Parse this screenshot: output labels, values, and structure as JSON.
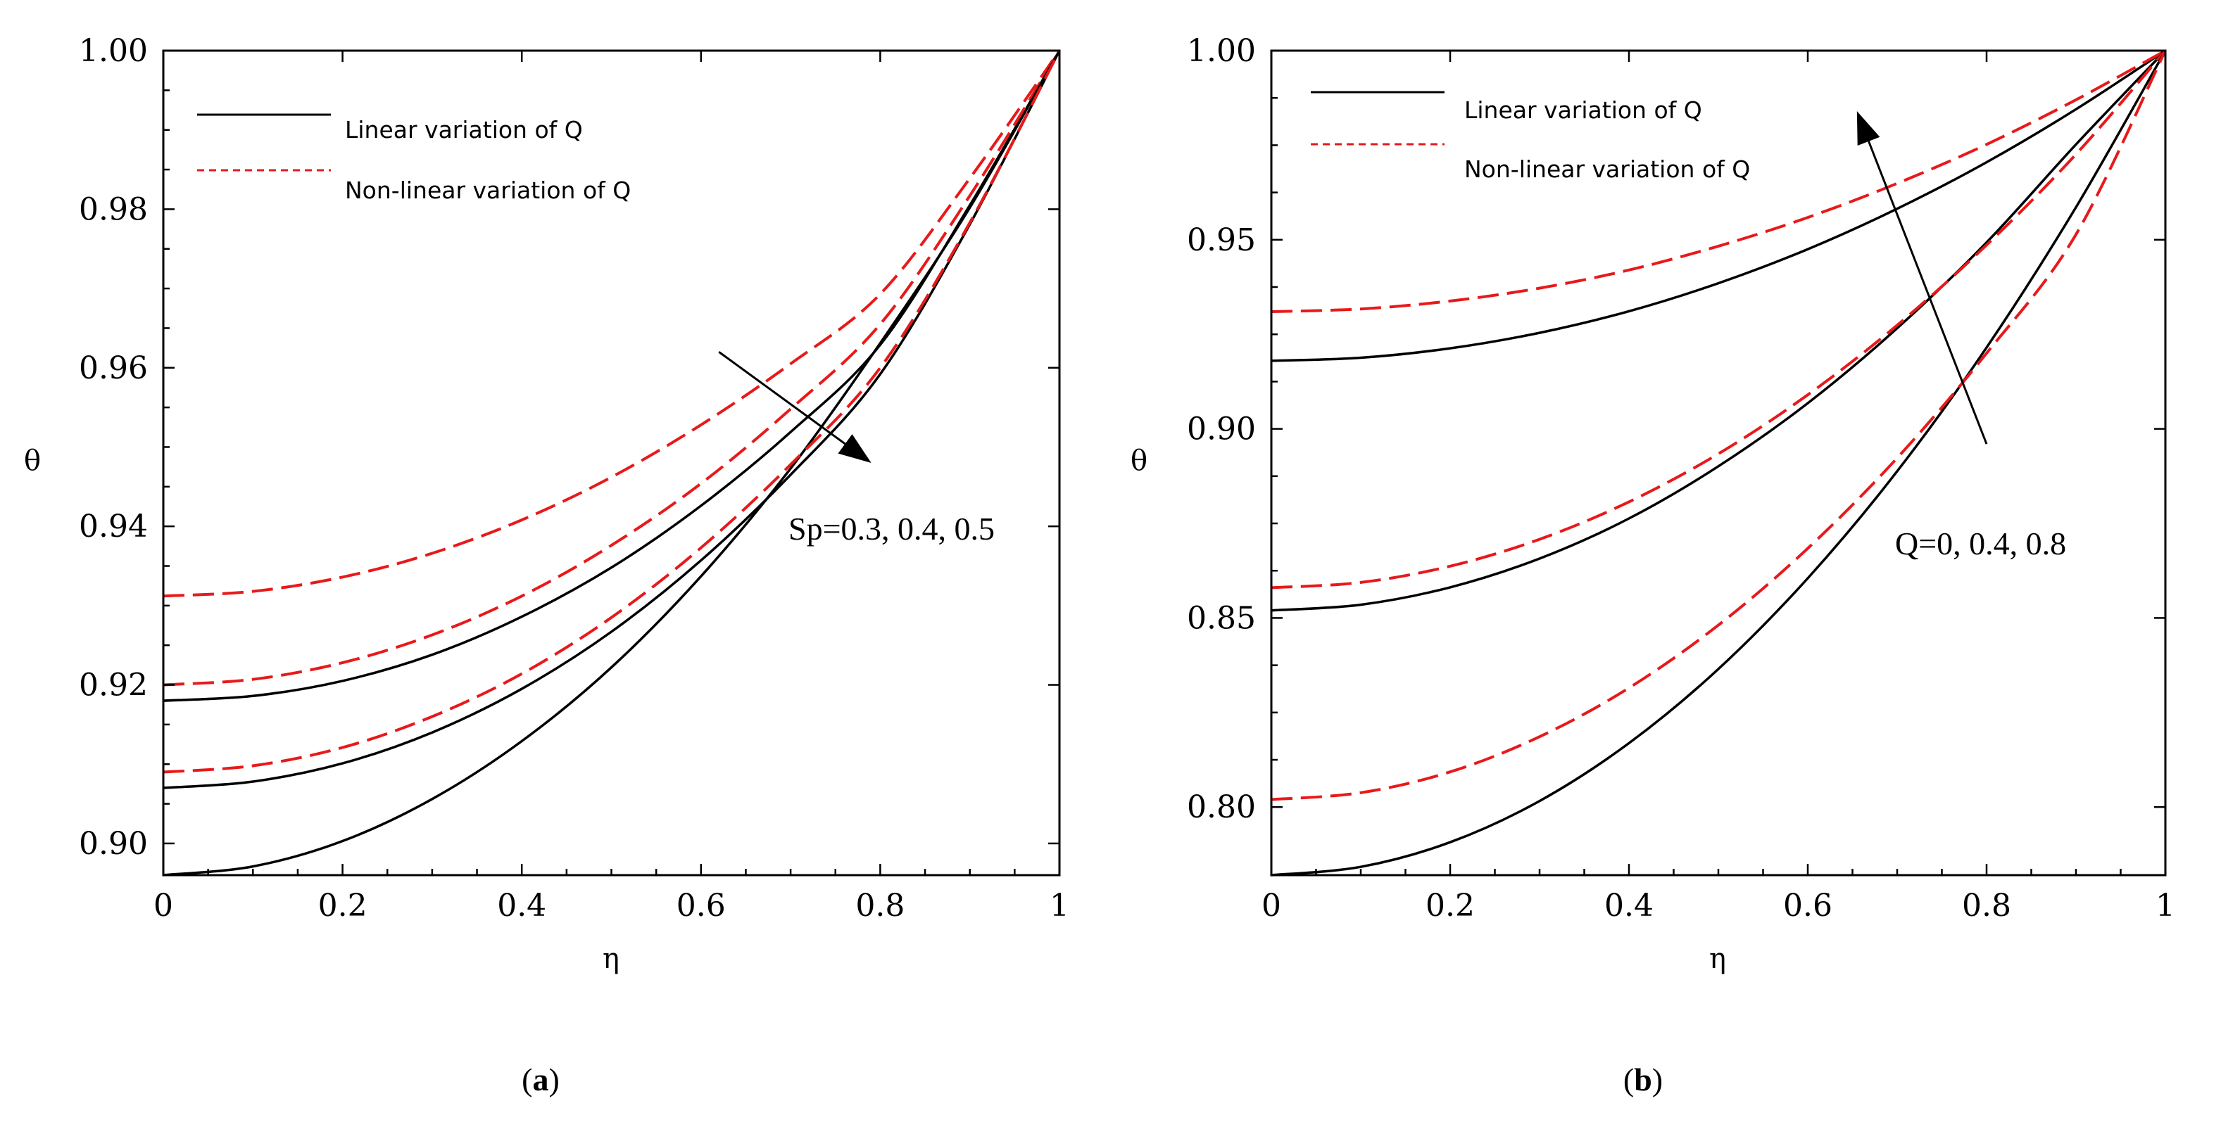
{
  "chart_data": [
    {
      "type": "line",
      "panel": "a",
      "caption_open": "(",
      "caption_letter": "a",
      "caption_close": ")",
      "xlabel": "η",
      "ylabel": "θ",
      "xlim": [
        0,
        1
      ],
      "ylim": [
        0.896,
        1.0
      ],
      "xticks": [
        0,
        0.2,
        0.4,
        0.6,
        0.8,
        1
      ],
      "xtick_labels": [
        "0",
        "0.2",
        "0.4",
        "0.6",
        "0.8",
        "1"
      ],
      "yticks": [
        0.9,
        0.92,
        0.94,
        0.96,
        0.98,
        1.0
      ],
      "ytick_labels": [
        "0.90",
        "0.92",
        "0.94",
        "0.96",
        "0.98",
        "1.00"
      ],
      "legend": {
        "position": "top-left",
        "entries": [
          {
            "label": "Linear variation of Q",
            "style": "solid",
            "color": "#000000"
          },
          {
            "label": "Non-linear variation of Q",
            "style": "dashed",
            "color": "#e8191a"
          }
        ]
      },
      "annotation": {
        "text": "Sp=0.3, 0.4, 0.5",
        "arrow_from": [
          0.62,
          0.962
        ],
        "arrow_to": [
          0.79,
          0.948
        ]
      },
      "series": [
        {
          "name": "Linear variation of Q, Sp=0.3",
          "style": "solid",
          "color": "#000000",
          "x": [
            0,
            0.1,
            0.2,
            0.3,
            0.4,
            0.5,
            0.6,
            0.7,
            0.8,
            0.9,
            1.0
          ],
          "y": [
            0.918,
            0.9186,
            0.9205,
            0.9238,
            0.9286,
            0.9348,
            0.9426,
            0.9519,
            0.9629,
            0.9805,
            1.0
          ]
        },
        {
          "name": "Non-linear variation of Q, Sp=0.3",
          "style": "dashed",
          "color": "#e8191a",
          "x": [
            0,
            0.1,
            0.2,
            0.3,
            0.4,
            0.5,
            0.6,
            0.7,
            0.8,
            0.9,
            1.0
          ],
          "y": [
            0.9312,
            0.9318,
            0.9336,
            0.9366,
            0.9408,
            0.9462,
            0.9528,
            0.9605,
            0.9693,
            0.9839,
            1.0
          ]
        },
        {
          "name": "Linear variation of Q, Sp=0.4",
          "style": "solid",
          "color": "#000000",
          "x": [
            0,
            0.1,
            0.2,
            0.3,
            0.4,
            0.5,
            0.6,
            0.7,
            0.8,
            0.9,
            1.0
          ],
          "y": [
            0.907,
            0.9078,
            0.9101,
            0.914,
            0.9195,
            0.9267,
            0.9357,
            0.9465,
            0.9592,
            0.9781,
            1.0
          ]
        },
        {
          "name": "Non-linear variation of Q, Sp=0.4",
          "style": "dashed",
          "color": "#e8191a",
          "x": [
            0,
            0.1,
            0.2,
            0.3,
            0.4,
            0.5,
            0.6,
            0.7,
            0.8,
            0.9,
            1.0
          ],
          "y": [
            0.92,
            0.9207,
            0.9228,
            0.9263,
            0.9312,
            0.9376,
            0.9454,
            0.9548,
            0.9655,
            0.9817,
            1.0
          ]
        },
        {
          "name": "Linear variation of Q, Sp=0.5",
          "style": "solid",
          "color": "#000000",
          "x": [
            0,
            0.1,
            0.2,
            0.3,
            0.4,
            0.5,
            0.6,
            0.7,
            0.8,
            0.9,
            1.0
          ],
          "y": [
            0.896,
            0.8971,
            0.9003,
            0.9056,
            0.9129,
            0.9222,
            0.9337,
            0.9473,
            0.9631,
            0.9802,
            1.0
          ]
        },
        {
          "name": "Non-linear variation of Q, Sp=0.5",
          "style": "dashed",
          "color": "#e8191a",
          "x": [
            0,
            0.1,
            0.2,
            0.3,
            0.4,
            0.5,
            0.6,
            0.7,
            0.8,
            0.9,
            1.0
          ],
          "y": [
            0.909,
            0.9098,
            0.9121,
            0.916,
            0.9214,
            0.9285,
            0.9373,
            0.9478,
            0.96,
            0.9783,
            1.0
          ]
        }
      ]
    },
    {
      "type": "line",
      "panel": "b",
      "caption_open": "(",
      "caption_letter": "b",
      "caption_close": ")",
      "xlabel": "η",
      "ylabel": "θ",
      "xlim": [
        0,
        1
      ],
      "ylim": [
        0.782,
        1.0
      ],
      "xticks": [
        0,
        0.2,
        0.4,
        0.6,
        0.8,
        1
      ],
      "xtick_labels": [
        "0",
        "0.2",
        "0.4",
        "0.6",
        "0.8",
        "1"
      ],
      "yticks": [
        0.8,
        0.85,
        0.9,
        0.95,
        1.0
      ],
      "ytick_labels": [
        "0.80",
        "0.85",
        "0.90",
        "0.95",
        "1.00"
      ],
      "legend": {
        "position": "top-left",
        "entries": [
          {
            "label": "Linear variation of Q",
            "style": "solid",
            "color": "#000000"
          },
          {
            "label": "Non-linear variation of Q",
            "style": "dashed",
            "color": "#e8191a"
          }
        ]
      },
      "annotation": {
        "text": "Q=0, 0.4, 0.8",
        "arrow_from": [
          0.8,
          0.896
        ],
        "arrow_to": [
          0.655,
          0.984
        ]
      },
      "series": [
        {
          "name": "Linear variation of Q, Q=0",
          "style": "solid",
          "color": "#000000",
          "x": [
            0,
            0.1,
            0.2,
            0.3,
            0.4,
            0.5,
            0.6,
            0.7,
            0.8,
            0.9,
            1.0
          ],
          "y": [
            0.918,
            0.9188,
            0.9213,
            0.9254,
            0.9311,
            0.9385,
            0.9475,
            0.9582,
            0.9705,
            0.9845,
            1.0
          ]
        },
        {
          "name": "Non-linear variation of Q, Q=0",
          "style": "dashed",
          "color": "#e8191a",
          "x": [
            0,
            0.1,
            0.2,
            0.3,
            0.4,
            0.5,
            0.6,
            0.7,
            0.8,
            0.9,
            1.0
          ],
          "y": [
            0.931,
            0.9317,
            0.9338,
            0.9372,
            0.942,
            0.9483,
            0.9559,
            0.9649,
            0.9752,
            0.987,
            1.0
          ]
        },
        {
          "name": "Linear variation of Q, Q=0.4",
          "style": "solid",
          "color": "#000000",
          "x": [
            0,
            0.1,
            0.2,
            0.3,
            0.4,
            0.5,
            0.6,
            0.7,
            0.8,
            0.9,
            1.0
          ],
          "y": [
            0.852,
            0.8535,
            0.8581,
            0.8657,
            0.8763,
            0.8901,
            0.9068,
            0.9266,
            0.9493,
            0.9752,
            1.0
          ]
        },
        {
          "name": "Non-linear variation of Q, Q=0.4",
          "style": "dashed",
          "color": "#e8191a",
          "x": [
            0,
            0.1,
            0.2,
            0.3,
            0.4,
            0.5,
            0.6,
            0.7,
            0.8,
            0.9,
            1.0
          ],
          "y": [
            0.858,
            0.8594,
            0.8637,
            0.8708,
            0.8807,
            0.8934,
            0.909,
            0.9274,
            0.9486,
            0.9726,
            1.0
          ]
        },
        {
          "name": "Linear variation of Q, Q=0.8",
          "style": "solid",
          "color": "#000000",
          "x": [
            0,
            0.1,
            0.2,
            0.3,
            0.4,
            0.5,
            0.6,
            0.7,
            0.8,
            0.9,
            1.0
          ],
          "y": [
            0.782,
            0.7842,
            0.7907,
            0.8016,
            0.8169,
            0.8365,
            0.8605,
            0.8888,
            0.9215,
            0.9586,
            1.0
          ]
        },
        {
          "name": "Non-linear variation of Q, Q=0.8",
          "style": "dashed",
          "color": "#e8191a",
          "x": [
            0,
            0.1,
            0.2,
            0.3,
            0.4,
            0.5,
            0.6,
            0.7,
            0.8,
            0.9,
            1.0
          ],
          "y": [
            0.802,
            0.8038,
            0.8093,
            0.8186,
            0.8315,
            0.8481,
            0.8684,
            0.8923,
            0.92,
            0.9514,
            1.0
          ]
        }
      ]
    }
  ]
}
